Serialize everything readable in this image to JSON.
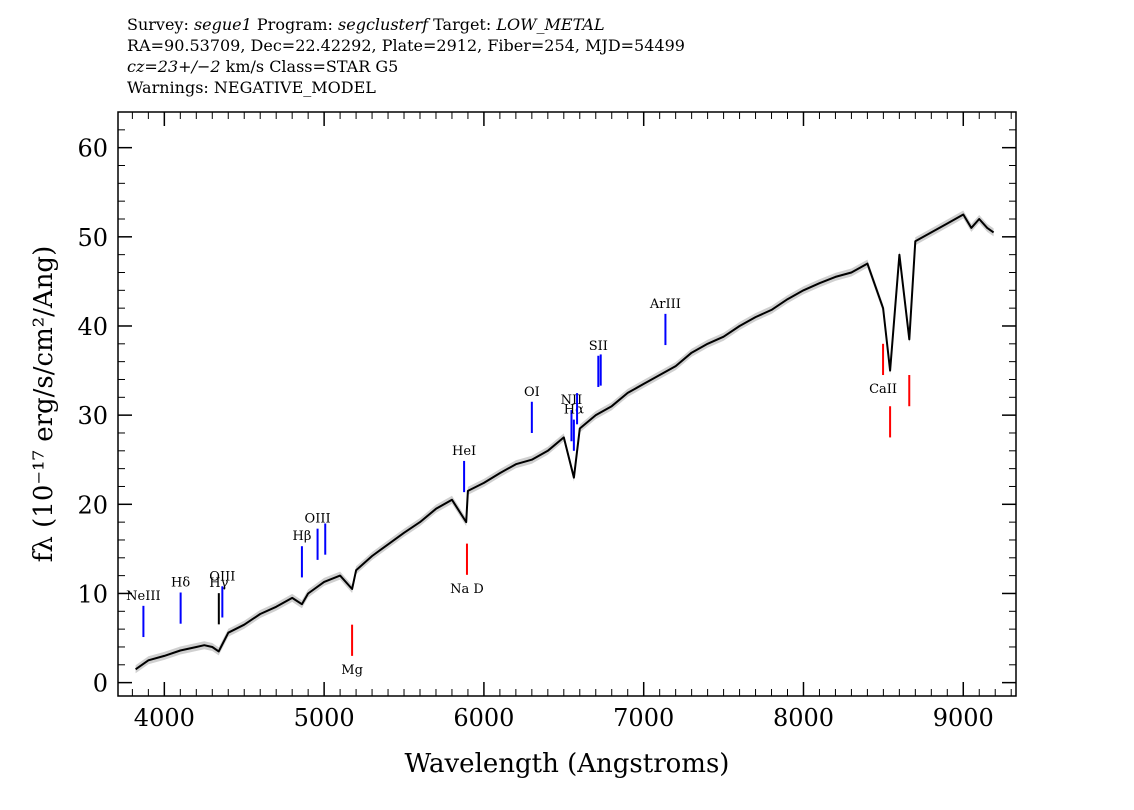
{
  "header": {
    "line1": {
      "survey_label": "Survey: ",
      "survey": "segue1",
      "program_label": " Program: ",
      "program": "segclusterf",
      "target_label": " Target: ",
      "target": "LOW_METAL"
    },
    "line2": "RA=90.53709, Dec=22.42292, Plate=2912, Fiber=254, MJD=54499",
    "line3": {
      "cz": "cz=23+/−2",
      "rest": " km/s Class=STAR G5"
    },
    "line4": "Warnings: NEGATIVE_MODEL"
  },
  "chart_data": {
    "type": "line",
    "title": "",
    "xlabel": "Wavelength (Angstroms)",
    "ylabel": "fλ (10⁻¹⁷ erg/s/cm²/Ang)",
    "xlim": [
      3710,
      9330
    ],
    "ylim": [
      -1.5,
      64
    ],
    "xticks": [
      4000,
      5000,
      6000,
      7000,
      8000,
      9000
    ],
    "yticks": [
      0,
      10,
      20,
      30,
      40,
      50,
      60
    ],
    "series": [
      {
        "x": [
          3820,
          3900,
          4000,
          4100,
          4200,
          4250,
          4300,
          4340,
          4400,
          4500,
          4600,
          4700,
          4800,
          4861,
          4900,
          5000,
          5100,
          5175,
          5200,
          5300,
          5400,
          5500,
          5600,
          5700,
          5800,
          5889,
          5900,
          6000,
          6100,
          6200,
          6300,
          6400,
          6500,
          6563,
          6600,
          6700,
          6800,
          6900,
          7000,
          7100,
          7200,
          7300,
          7400,
          7500,
          7600,
          7700,
          7800,
          7900,
          8000,
          8100,
          8200,
          8300,
          8400,
          8498,
          8542,
          8600,
          8662,
          8700,
          8800,
          8900,
          8950,
          9000,
          9050,
          9100,
          9150,
          9190
        ],
        "y": [
          1.5,
          2.5,
          3.0,
          3.6,
          4.0,
          4.2,
          4.0,
          3.5,
          5.6,
          6.5,
          7.7,
          8.5,
          9.5,
          8.8,
          10.0,
          11.3,
          12.0,
          10.5,
          12.6,
          14.2,
          15.5,
          16.8,
          18.0,
          19.5,
          20.5,
          18.0,
          21.5,
          22.4,
          23.5,
          24.5,
          25.0,
          26.0,
          27.5,
          23.0,
          28.5,
          30.0,
          31.0,
          32.5,
          33.5,
          34.5,
          35.5,
          37.0,
          38.0,
          38.8,
          40.0,
          41.0,
          41.8,
          43.0,
          44.0,
          44.8,
          45.5,
          46.0,
          47.0,
          42.0,
          35.0,
          48.0,
          38.5,
          49.5,
          50.5,
          51.5,
          52.0,
          52.5,
          51.0,
          52.0,
          51.0,
          50.5
        ]
      }
    ],
    "line_markers": [
      {
        "label": "NeIII",
        "wavelength": 3869,
        "color": "#0000ff"
      },
      {
        "label": "Hδ",
        "wavelength": 4102,
        "color": "#0000ff"
      },
      {
        "label": "Hγ",
        "wavelength": 4341,
        "color": "#000000"
      },
      {
        "label": "OIII",
        "wavelength": 4363,
        "color": "#0000ff"
      },
      {
        "label": "Hβ",
        "wavelength": 4861,
        "color": "#0000ff"
      },
      {
        "label": "OIII",
        "wavelength": 4959,
        "color": "#0000ff"
      },
      {
        "label": "OIII",
        "wavelength": 5007,
        "color": "#0000ff"
      },
      {
        "label": "HeI",
        "wavelength": 5876,
        "color": "#0000ff"
      },
      {
        "label": "OI",
        "wavelength": 6300,
        "color": "#0000ff"
      },
      {
        "label": "NII",
        "wavelength": 6548,
        "color": "#0000ff"
      },
      {
        "label": "Hα",
        "wavelength": 6563,
        "color": "#0000ff"
      },
      {
        "label": "NII",
        "wavelength": 6583,
        "color": "#0000ff"
      },
      {
        "label": "SII",
        "wavelength": 6716,
        "color": "#0000ff"
      },
      {
        "label": "SII",
        "wavelength": 6731,
        "color": "#0000ff"
      },
      {
        "label": "ArIII",
        "wavelength": 7136,
        "color": "#0000ff"
      },
      {
        "label": "Mg",
        "wavelength": 5175,
        "color": "#ff0000"
      },
      {
        "label": "Na D",
        "wavelength": 5894,
        "color": "#ff0000"
      },
      {
        "label": "CaII",
        "wavelength": 8498,
        "color": "#ff0000"
      },
      {
        "label": "CaII",
        "wavelength": 8542,
        "color": "#ff0000"
      },
      {
        "label": "CaII",
        "wavelength": 8662,
        "color": "#ff0000"
      }
    ],
    "grid": false,
    "colors": {
      "spectrum": "#000000",
      "error_band": "#b0b0b0",
      "emission": "#0000ff",
      "absorption": "#ff0000"
    }
  }
}
